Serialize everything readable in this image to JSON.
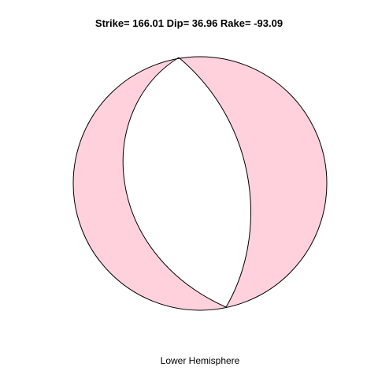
{
  "title": "Strike= 166.01 Dip= 36.96 Rake= -93.09",
  "subtitle": "Lower Hemisphere",
  "mechanism": {
    "strike": 166.01,
    "dip": 36.96,
    "rake": -93.09
  },
  "colors": {
    "compressional_fill": "#FFD1DC",
    "dilatational_fill": "#FFFFFF",
    "outline": "#000000",
    "background": "#FFFFFF"
  }
}
